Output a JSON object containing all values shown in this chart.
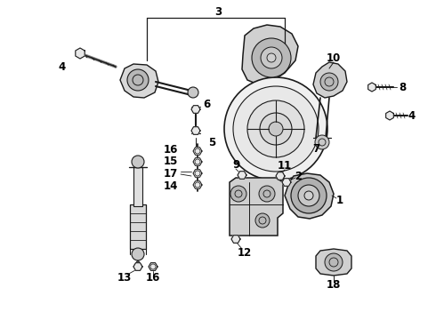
{
  "background_color": "#ffffff",
  "line_color": "#1a1a1a",
  "label_color": "#000000",
  "fig_width": 4.9,
  "fig_height": 3.6,
  "dpi": 100,
  "label_fontsize": 8.5,
  "label_fontweight": "bold"
}
